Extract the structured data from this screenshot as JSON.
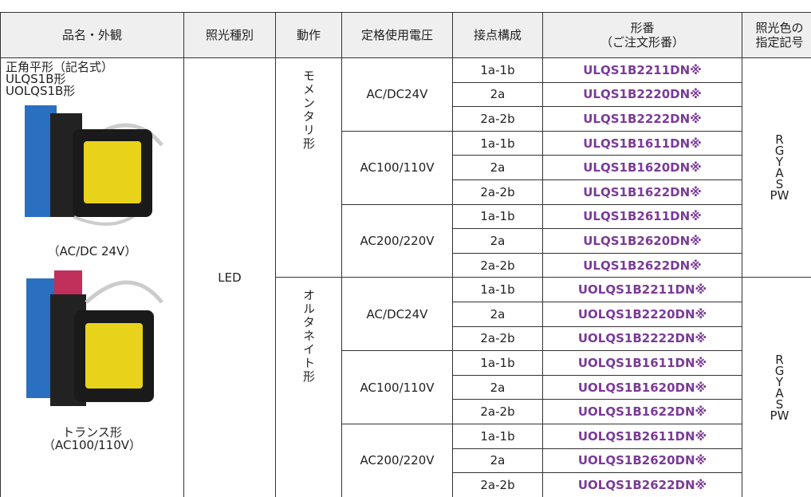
{
  "header": {
    "columns": [
      {
        "lines": [
          "品名・外観"
        ]
      },
      {
        "lines": [
          "照光種別"
        ]
      },
      {
        "lines": [
          "動作"
        ]
      },
      {
        "lines": [
          "定格使用電圧"
        ]
      },
      {
        "lines": [
          "接点構成"
        ]
      },
      {
        "lines": [
          "形番",
          "（ご注文形番）"
        ]
      },
      {
        "lines": [
          "照光色の",
          "指定記号"
        ]
      }
    ]
  },
  "product": {
    "lines": [
      "正角平形（記名式）",
      "ULQS1B形",
      "UOLQS1B形"
    ],
    "caption1": "（AC/DC 24V）",
    "caption2": [
      "トランス形",
      "（AC100/110V）"
    ]
  },
  "lighting": "LED",
  "groups": [
    {
      "action": "モメンタリ形",
      "colors": [
        "R",
        "G",
        "Y",
        "A",
        "S",
        "PW"
      ],
      "voltages": [
        {
          "voltage": "AC/DC24V",
          "rows": [
            {
              "contact": "1a-1b",
              "model": "ULQS1B2211DN※"
            },
            {
              "contact": "2a",
              "model": "ULQS1B2220DN※"
            },
            {
              "contact": "2a-2b",
              "model": "ULQS1B2222DN※"
            }
          ]
        },
        {
          "voltage": "AC100/110V",
          "rows": [
            {
              "contact": "1a-1b",
              "model": "ULQS1B1611DN※"
            },
            {
              "contact": "2a",
              "model": "ULQS1B1620DN※"
            },
            {
              "contact": "2a-2b",
              "model": "ULQS1B1622DN※"
            }
          ]
        },
        {
          "voltage": "AC200/220V",
          "rows": [
            {
              "contact": "1a-1b",
              "model": "ULQS1B2611DN※"
            },
            {
              "contact": "2a",
              "model": "ULQS1B2620DN※"
            },
            {
              "contact": "2a-2b",
              "model": "ULQS1B2622DN※"
            }
          ]
        }
      ]
    },
    {
      "action": "オルタネイト形",
      "colors": [
        "R",
        "G",
        "Y",
        "A",
        "S",
        "PW"
      ],
      "voltages": [
        {
          "voltage": "AC/DC24V",
          "rows": [
            {
              "contact": "1a-1b",
              "model": "UOLQS1B2211DN※"
            },
            {
              "contact": "2a",
              "model": "UOLQS1B2220DN※"
            },
            {
              "contact": "2a-2b",
              "model": "UOLQS1B2222DN※"
            }
          ]
        },
        {
          "voltage": "AC100/110V",
          "rows": [
            {
              "contact": "1a-1b",
              "model": "UOLQS1B1611DN※"
            },
            {
              "contact": "2a",
              "model": "UOLQS1B1620DN※"
            },
            {
              "contact": "2a-2b",
              "model": "UOLQS1B1622DN※"
            }
          ]
        },
        {
          "voltage": "AC200/220V",
          "rows": [
            {
              "contact": "1a-1b",
              "model": "UOLQS1B2611DN※"
            },
            {
              "contact": "2a",
              "model": "UOLQS1B2620DN※"
            },
            {
              "contact": "2a-2b",
              "model": "UOLQS1B2622DN※"
            }
          ]
        }
      ]
    }
  ]
}
